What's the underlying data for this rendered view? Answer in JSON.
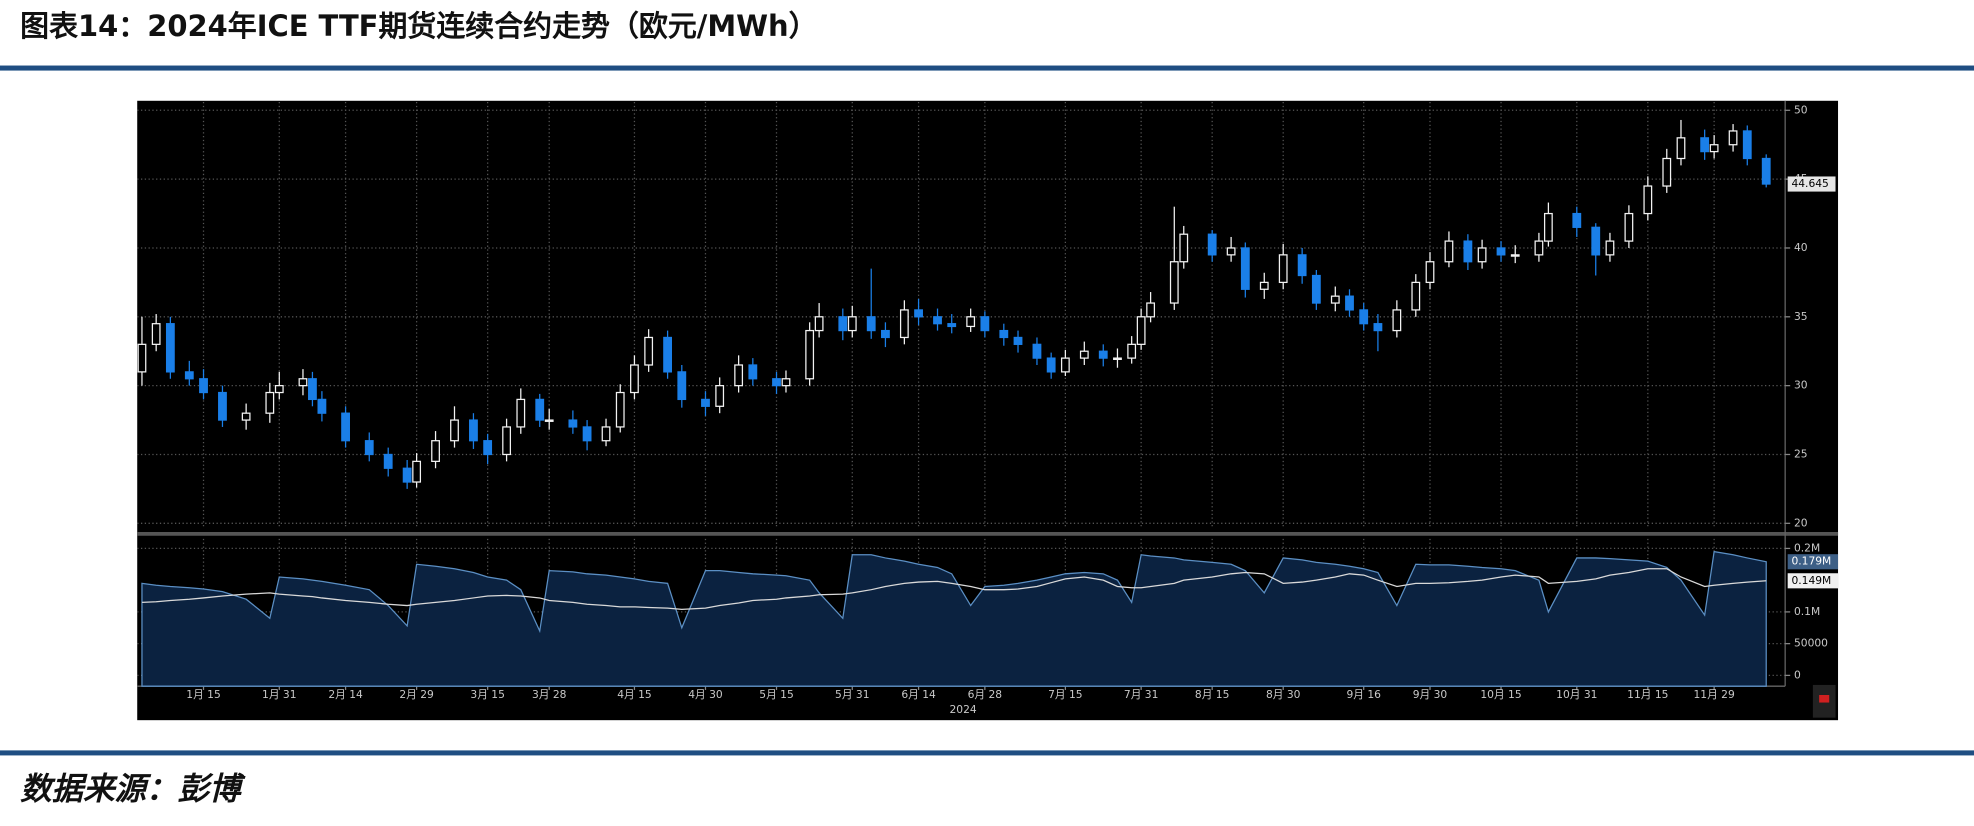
{
  "title": "图表14：2024年ICE TTF期货连续合约走势（欧元/MWh）",
  "source": "数据来源：彭博",
  "chart_data": {
    "type": "candlestick",
    "x": [
      "2024-01-02",
      "2024-01-05",
      "2024-01-08",
      "2024-01-12",
      "2024-01-15",
      "2024-01-19",
      "2024-01-24",
      "2024-01-29",
      "2024-01-31",
      "2024-02-05",
      "2024-02-07",
      "2024-02-09",
      "2024-02-14",
      "2024-02-19",
      "2024-02-23",
      "2024-02-27",
      "2024-02-29",
      "2024-03-04",
      "2024-03-08",
      "2024-03-12",
      "2024-03-15",
      "2024-03-19",
      "2024-03-22",
      "2024-03-26",
      "2024-03-28",
      "2024-04-02",
      "2024-04-05",
      "2024-04-09",
      "2024-04-12",
      "2024-04-15",
      "2024-04-18",
      "2024-04-22",
      "2024-04-25",
      "2024-04-30",
      "2024-05-03",
      "2024-05-07",
      "2024-05-10",
      "2024-05-15",
      "2024-05-17",
      "2024-05-22",
      "2024-05-24",
      "2024-05-29",
      "2024-05-31",
      "2024-06-04",
      "2024-06-07",
      "2024-06-11",
      "2024-06-14",
      "2024-06-18",
      "2024-06-21",
      "2024-06-25",
      "2024-06-28",
      "2024-07-02",
      "2024-07-05",
      "2024-07-09",
      "2024-07-12",
      "2024-07-15",
      "2024-07-19",
      "2024-07-23",
      "2024-07-26",
      "2024-07-29",
      "2024-07-31",
      "2024-08-02",
      "2024-08-07",
      "2024-08-09",
      "2024-08-15",
      "2024-08-19",
      "2024-08-22",
      "2024-08-26",
      "2024-08-30",
      "2024-09-03",
      "2024-09-06",
      "2024-09-10",
      "2024-09-13",
      "2024-09-16",
      "2024-09-19",
      "2024-09-23",
      "2024-09-27",
      "2024-09-30",
      "2024-10-04",
      "2024-10-08",
      "2024-10-11",
      "2024-10-15",
      "2024-10-18",
      "2024-10-23",
      "2024-10-25",
      "2024-10-31",
      "2024-11-04",
      "2024-11-07",
      "2024-11-11",
      "2024-11-15",
      "2024-11-19",
      "2024-11-22",
      "2024-11-27",
      "2024-11-29",
      "2024-12-03",
      "2024-12-06",
      "2024-12-10"
    ],
    "open": [
      31,
      33,
      34.5,
      31,
      30.5,
      29.5,
      27.5,
      28,
      29.5,
      30,
      30.5,
      29,
      28,
      26,
      25,
      24,
      23,
      24.5,
      26,
      27.5,
      26,
      25,
      27,
      29,
      27.5,
      27.5,
      27,
      26,
      27,
      29.5,
      31.5,
      33.5,
      31,
      29,
      28.5,
      30,
      31.5,
      30.5,
      30,
      30.5,
      34,
      35,
      34,
      35,
      34,
      33.5,
      35.5,
      35,
      34.5,
      34.3,
      35,
      34,
      33.5,
      33,
      32,
      31,
      32,
      32.5,
      32,
      32,
      33,
      35,
      36,
      39,
      41,
      39.5,
      40,
      37,
      37.5,
      39.5,
      38,
      36,
      36.5,
      35.5,
      34.5,
      34,
      35.5,
      37.5,
      39,
      40.5,
      39,
      40,
      39.5,
      39.5,
      40.5,
      42.5,
      41.5,
      39.5,
      40.5,
      42.5,
      44.5,
      46.5,
      48,
      47,
      47.5,
      48.5,
      46.5
    ],
    "high": [
      35,
      35.2,
      35,
      31.8,
      31.2,
      30,
      28.7,
      30.2,
      31,
      31.2,
      31,
      29.6,
      28.5,
      26.6,
      25.5,
      24.6,
      25.1,
      26.7,
      28.5,
      28,
      26.5,
      27.6,
      29.8,
      29.4,
      28.3,
      28.2,
      27.5,
      27.6,
      30.1,
      32.2,
      34.1,
      34,
      31.5,
      29.6,
      30.6,
      32.2,
      32,
      31,
      31.1,
      34.6,
      36,
      35.6,
      35.8,
      38.5,
      34.6,
      36.2,
      36.3,
      35.6,
      35.2,
      35.6,
      35.4,
      34.5,
      34,
      33.5,
      32.4,
      32.6,
      33.2,
      33,
      32.7,
      33.6,
      35.6,
      36.8,
      43,
      41.6,
      41.3,
      40.8,
      40.4,
      38.2,
      40.3,
      40,
      38.4,
      37.2,
      37,
      36,
      35.2,
      36.2,
      38.1,
      39.7,
      41.2,
      41,
      40.6,
      40.5,
      40.2,
      41.1,
      43.3,
      43,
      41.8,
      41.1,
      43.1,
      45.2,
      47.2,
      49.3,
      48.6,
      48.2,
      49,
      48.9,
      46.8
    ],
    "low": [
      30,
      32.5,
      30.5,
      30,
      29,
      27,
      26.8,
      27.3,
      29,
      29.3,
      28.5,
      27.4,
      25.5,
      24.5,
      23.4,
      22.5,
      22.6,
      24,
      25.5,
      25.4,
      24.3,
      24.5,
      26.5,
      27,
      26.8,
      26.5,
      25.3,
      25.6,
      26.6,
      29,
      31,
      30.5,
      28.4,
      27.8,
      28,
      29.5,
      30,
      29.4,
      29.5,
      30,
      33.5,
      33.3,
      33.5,
      33.4,
      32.8,
      33,
      34.4,
      34,
      33.8,
      33.9,
      33.5,
      32.9,
      32.4,
      31.5,
      30.5,
      30.7,
      31.5,
      31.4,
      31.3,
      31.6,
      32.6,
      34.6,
      35.5,
      38.5,
      39,
      39,
      36.4,
      36.3,
      37,
      37.4,
      35.5,
      35.4,
      35,
      34,
      32.5,
      33.5,
      35,
      37,
      38.6,
      38.4,
      38.5,
      39,
      38.9,
      39,
      40.1,
      40.8,
      38,
      39,
      40,
      42,
      44,
      46,
      46.4,
      46.5,
      47,
      46,
      44.4
    ],
    "close": [
      33,
      34.5,
      31,
      30.5,
      29.5,
      27.5,
      28,
      29.5,
      30,
      30.5,
      29,
      28,
      26,
      25,
      24,
      23,
      24.5,
      26,
      27.5,
      26,
      25,
      27,
      29,
      27.5,
      27.5,
      27,
      26,
      27,
      29.5,
      31.5,
      33.5,
      31,
      29,
      28.5,
      30,
      31.5,
      30.5,
      30,
      30.5,
      34,
      35,
      34,
      35,
      34,
      33.5,
      35.5,
      35,
      34.5,
      34.3,
      35,
      34,
      33.5,
      33,
      32,
      31,
      32,
      32.5,
      32,
      32,
      33,
      35,
      36,
      39,
      41,
      39.5,
      40,
      37,
      37.5,
      39.5,
      38,
      36,
      36.5,
      35.5,
      34.5,
      34,
      35.5,
      37.5,
      39,
      40.5,
      39,
      40,
      39.5,
      39.5,
      40.5,
      42.5,
      41.5,
      39.5,
      40.5,
      42.5,
      44.5,
      46.5,
      48,
      47,
      47.5,
      48.5,
      46.5,
      44.645
    ],
    "up_color": "#f2f2f2",
    "down_color": "#1a7fe8",
    "xlim": [
      "2024-01-01",
      "2024-12-14"
    ],
    "ylim": [
      19.6,
      50.6
    ],
    "yticks": [
      20,
      25,
      30,
      35,
      40,
      45,
      50
    ],
    "xticks": [
      {
        "value": "2024-01-15",
        "label": "1月 15"
      },
      {
        "value": "2024-01-31",
        "label": "1月 31"
      },
      {
        "value": "2024-02-14",
        "label": "2月 14"
      },
      {
        "value": "2024-02-29",
        "label": "2月 29"
      },
      {
        "value": "2024-03-15",
        "label": "3月 15"
      },
      {
        "value": "2024-03-28",
        "label": "3月 28"
      },
      {
        "value": "2024-04-15",
        "label": "4月 15"
      },
      {
        "value": "2024-04-30",
        "label": "4月 30"
      },
      {
        "value": "2024-05-15",
        "label": "5月 15"
      },
      {
        "value": "2024-05-31",
        "label": "5月 31"
      },
      {
        "value": "2024-06-14",
        "label": "6月 14"
      },
      {
        "value": "2024-06-28",
        "label": "6月 28"
      },
      {
        "value": "2024-07-15",
        "label": "7月 15"
      },
      {
        "value": "2024-07-31",
        "label": "7月 31"
      },
      {
        "value": "2024-08-15",
        "label": "8月 15"
      },
      {
        "value": "2024-08-30",
        "label": "8月 30"
      },
      {
        "value": "2024-09-16",
        "label": "9月 16"
      },
      {
        "value": "2024-09-30",
        "label": "9月 30"
      },
      {
        "value": "2024-10-15",
        "label": "10月 15"
      },
      {
        "value": "2024-10-31",
        "label": "10月 31"
      },
      {
        "value": "2024-11-15",
        "label": "11月 15"
      },
      {
        "value": "2024-11-29",
        "label": "11月 29"
      }
    ],
    "xlabel": "2024",
    "grid": true,
    "volume_panel": {
      "ylim": [
        -17000,
        215000
      ],
      "yticks": [
        0,
        50000,
        {
          "value": 100000,
          "label": "0.1M"
        },
        {
          "value": 200000,
          "label": "0.2M"
        }
      ],
      "area": {
        "color": "#0b2240",
        "edge_color": "#5b8fc4",
        "last_label": "0.179M",
        "values": [
          145000,
          142000,
          140000,
          138000,
          136000,
          132000,
          120000,
          90000,
          155000,
          152000,
          150000,
          148000,
          142000,
          135000,
          110000,
          78000,
          175000,
          172000,
          168000,
          162000,
          155000,
          150000,
          135000,
          70000,
          165000,
          163000,
          160000,
          158000,
          155000,
          152000,
          148000,
          145000,
          75000,
          165000,
          165000,
          162000,
          160000,
          158000,
          157000,
          150000,
          130000,
          90000,
          190000,
          190000,
          185000,
          180000,
          175000,
          170000,
          160000,
          110000,
          140000,
          142000,
          145000,
          150000,
          155000,
          160000,
          162000,
          160000,
          150000,
          115000,
          190000,
          188000,
          185000,
          182000,
          178000,
          175000,
          165000,
          130000,
          185000,
          182000,
          178000,
          175000,
          172000,
          168000,
          162000,
          110000,
          175000,
          174000,
          174000,
          172000,
          170000,
          168000,
          165000,
          150000,
          100000,
          185000,
          185000,
          184000,
          182000,
          180000,
          170000,
          150000,
          95000,
          195000,
          190000,
          185000,
          179000
        ]
      },
      "line": {
        "color": "#d9d9d9",
        "last_label": "0.149M",
        "values": [
          115000,
          116000,
          118000,
          120000,
          122000,
          125000,
          128000,
          130000,
          128000,
          125000,
          124000,
          122000,
          118000,
          115000,
          112000,
          110000,
          112000,
          115000,
          118000,
          122000,
          125000,
          126000,
          125000,
          122000,
          118000,
          115000,
          112000,
          110000,
          108000,
          108000,
          107000,
          106000,
          104000,
          106000,
          110000,
          114000,
          118000,
          120000,
          122000,
          125000,
          127000,
          128000,
          130000,
          135000,
          140000,
          145000,
          147000,
          148000,
          145000,
          140000,
          135000,
          135000,
          136000,
          140000,
          146000,
          152000,
          155000,
          150000,
          140000,
          138000,
          138000,
          140000,
          145000,
          150000,
          155000,
          160000,
          162000,
          160000,
          145000,
          147000,
          150000,
          155000,
          160000,
          158000,
          150000,
          140000,
          145000,
          145000,
          146000,
          148000,
          150000,
          155000,
          158000,
          155000,
          145000,
          148000,
          152000,
          158000,
          162000,
          168000,
          168000,
          155000,
          140000,
          142000,
          145000,
          147000,
          149000
        ]
      }
    }
  }
}
